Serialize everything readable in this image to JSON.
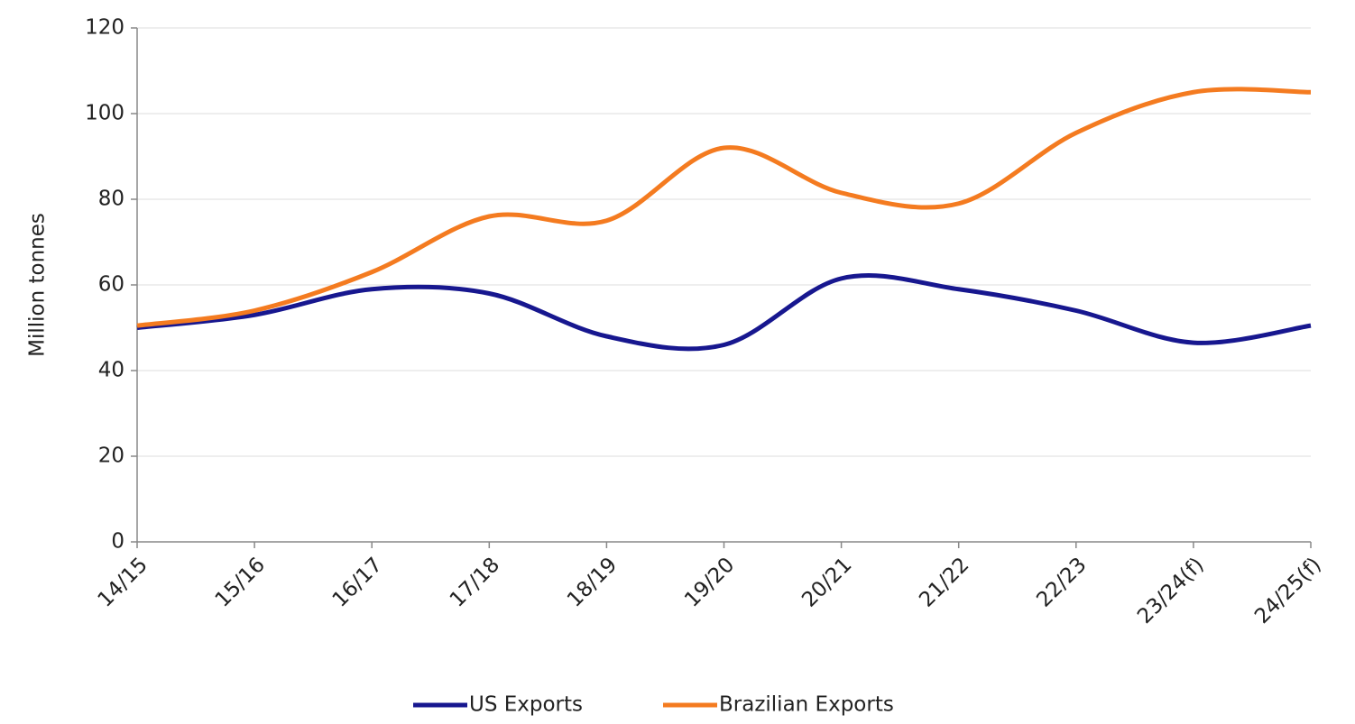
{
  "chart_data": {
    "type": "line",
    "y_label": "Million tonnes",
    "categories": [
      "14/15",
      "15/16",
      "16/17",
      "17/18",
      "18/19",
      "19/20",
      "20/21",
      "21/22",
      "22/23",
      "23/24(f)",
      "24/25(f)"
    ],
    "series": [
      {
        "name": "US Exports",
        "color": "#17178f",
        "values": [
          50,
          53,
          59,
          58,
          48,
          46,
          61.5,
          59,
          54,
          46.5,
          50.5
        ]
      },
      {
        "name": "Brazilian Exports",
        "color": "#f47b20",
        "values": [
          50.5,
          54,
          63,
          76,
          75,
          92,
          81.5,
          79,
          95.5,
          105,
          105
        ]
      }
    ],
    "ylim": [
      0,
      120
    ],
    "yticks": [
      0,
      20,
      40,
      60,
      80,
      100,
      120
    ],
    "grid": true,
    "legend": "bottom"
  }
}
